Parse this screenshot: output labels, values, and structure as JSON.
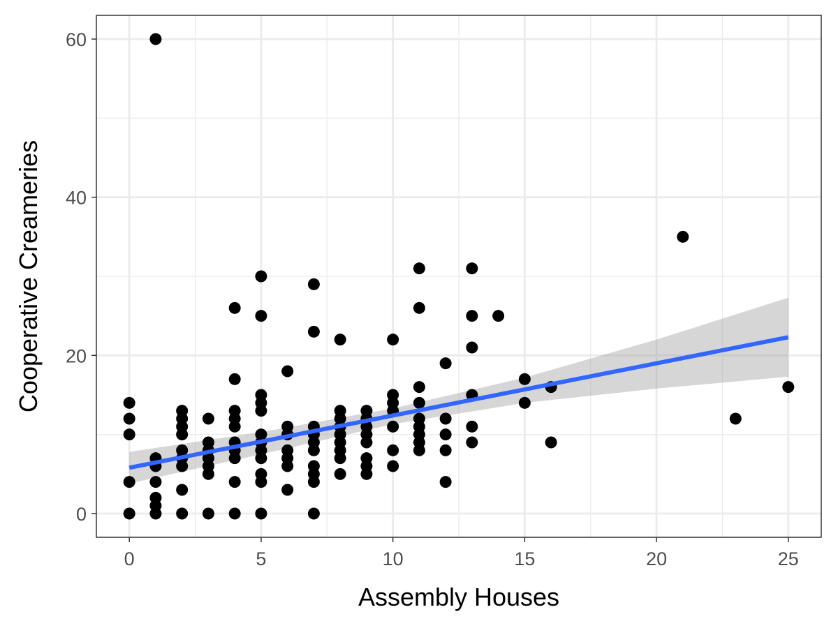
{
  "chart_data": {
    "type": "scatter",
    "title": "",
    "xlabel": "Assembly Houses",
    "ylabel": "Cooperative Creameries",
    "xlim": [
      -1.25,
      26.25
    ],
    "ylim": [
      -3,
      63
    ],
    "x_ticks": [
      0,
      5,
      10,
      15,
      20,
      25
    ],
    "y_ticks": [
      0,
      20,
      40,
      60
    ],
    "x_tick_labels": [
      "0",
      "5",
      "10",
      "15",
      "20",
      "25"
    ],
    "y_tick_labels": [
      "0",
      "20",
      "40",
      "60"
    ],
    "grid": true,
    "theme": "bw",
    "points": [
      [
        1,
        60
      ],
      [
        0,
        14
      ],
      [
        0,
        12
      ],
      [
        0,
        10
      ],
      [
        0,
        4
      ],
      [
        0,
        0
      ],
      [
        1,
        7
      ],
      [
        1,
        6
      ],
      [
        1,
        4
      ],
      [
        1,
        2
      ],
      [
        1,
        1
      ],
      [
        1,
        0
      ],
      [
        2,
        13
      ],
      [
        2,
        12
      ],
      [
        2,
        11
      ],
      [
        2,
        10
      ],
      [
        2,
        8
      ],
      [
        2,
        7
      ],
      [
        2,
        6
      ],
      [
        2,
        3
      ],
      [
        2,
        0
      ],
      [
        3,
        12
      ],
      [
        3,
        9
      ],
      [
        3,
        8
      ],
      [
        3,
        7
      ],
      [
        3,
        6
      ],
      [
        3,
        5
      ],
      [
        3,
        0
      ],
      [
        4,
        26
      ],
      [
        4,
        17
      ],
      [
        4,
        13
      ],
      [
        4,
        12
      ],
      [
        4,
        11
      ],
      [
        4,
        9
      ],
      [
        4,
        8
      ],
      [
        4,
        7
      ],
      [
        4,
        4
      ],
      [
        4,
        0
      ],
      [
        5,
        30
      ],
      [
        5,
        25
      ],
      [
        5,
        15
      ],
      [
        5,
        14
      ],
      [
        5,
        13
      ],
      [
        5,
        10
      ],
      [
        5,
        9
      ],
      [
        5,
        8
      ],
      [
        5,
        7
      ],
      [
        5,
        5
      ],
      [
        5,
        4
      ],
      [
        5,
        0
      ],
      [
        6,
        18
      ],
      [
        6,
        11
      ],
      [
        6,
        10
      ],
      [
        6,
        8
      ],
      [
        6,
        7
      ],
      [
        6,
        6
      ],
      [
        6,
        3
      ],
      [
        7,
        29
      ],
      [
        7,
        23
      ],
      [
        7,
        11
      ],
      [
        7,
        10
      ],
      [
        7,
        9
      ],
      [
        7,
        8
      ],
      [
        7,
        6
      ],
      [
        7,
        5
      ],
      [
        7,
        4
      ],
      [
        7,
        0
      ],
      [
        8,
        22
      ],
      [
        8,
        13
      ],
      [
        8,
        12
      ],
      [
        8,
        11
      ],
      [
        8,
        10
      ],
      [
        8,
        9
      ],
      [
        8,
        8
      ],
      [
        8,
        7
      ],
      [
        8,
        5
      ],
      [
        9,
        13
      ],
      [
        9,
        12
      ],
      [
        9,
        11
      ],
      [
        9,
        10
      ],
      [
        9,
        9
      ],
      [
        9,
        7
      ],
      [
        9,
        6
      ],
      [
        9,
        5
      ],
      [
        10,
        22
      ],
      [
        10,
        15
      ],
      [
        10,
        14
      ],
      [
        10,
        13
      ],
      [
        10,
        11
      ],
      [
        10,
        8
      ],
      [
        10,
        6
      ],
      [
        11,
        31
      ],
      [
        11,
        26
      ],
      [
        11,
        16
      ],
      [
        11,
        14
      ],
      [
        11,
        12
      ],
      [
        11,
        11
      ],
      [
        11,
        10
      ],
      [
        11,
        9
      ],
      [
        11,
        8
      ],
      [
        12,
        19
      ],
      [
        12,
        12
      ],
      [
        12,
        10
      ],
      [
        12,
        8
      ],
      [
        12,
        4
      ],
      [
        13,
        31
      ],
      [
        13,
        25
      ],
      [
        13,
        21
      ],
      [
        13,
        15
      ],
      [
        13,
        11
      ],
      [
        13,
        9
      ],
      [
        14,
        25
      ],
      [
        15,
        17
      ],
      [
        15,
        14
      ],
      [
        16,
        16
      ],
      [
        16,
        9
      ],
      [
        21,
        35
      ],
      [
        23,
        12
      ],
      [
        25,
        16
      ]
    ],
    "smooth": {
      "method": "lm",
      "color": "#3366FF",
      "line": [
        [
          0,
          5.8
        ],
        [
          25,
          22.3
        ]
      ],
      "band_upper": [
        [
          0,
          7.8
        ],
        [
          5,
          10.3
        ],
        [
          10,
          13.3
        ],
        [
          15,
          17.2
        ],
        [
          20,
          22.0
        ],
        [
          25,
          27.3
        ]
      ],
      "band_lower": [
        [
          0,
          3.8
        ],
        [
          5,
          7.5
        ],
        [
          10,
          11.3
        ],
        [
          15,
          14.0
        ],
        [
          20,
          15.8
        ],
        [
          25,
          17.3
        ]
      ]
    }
  }
}
